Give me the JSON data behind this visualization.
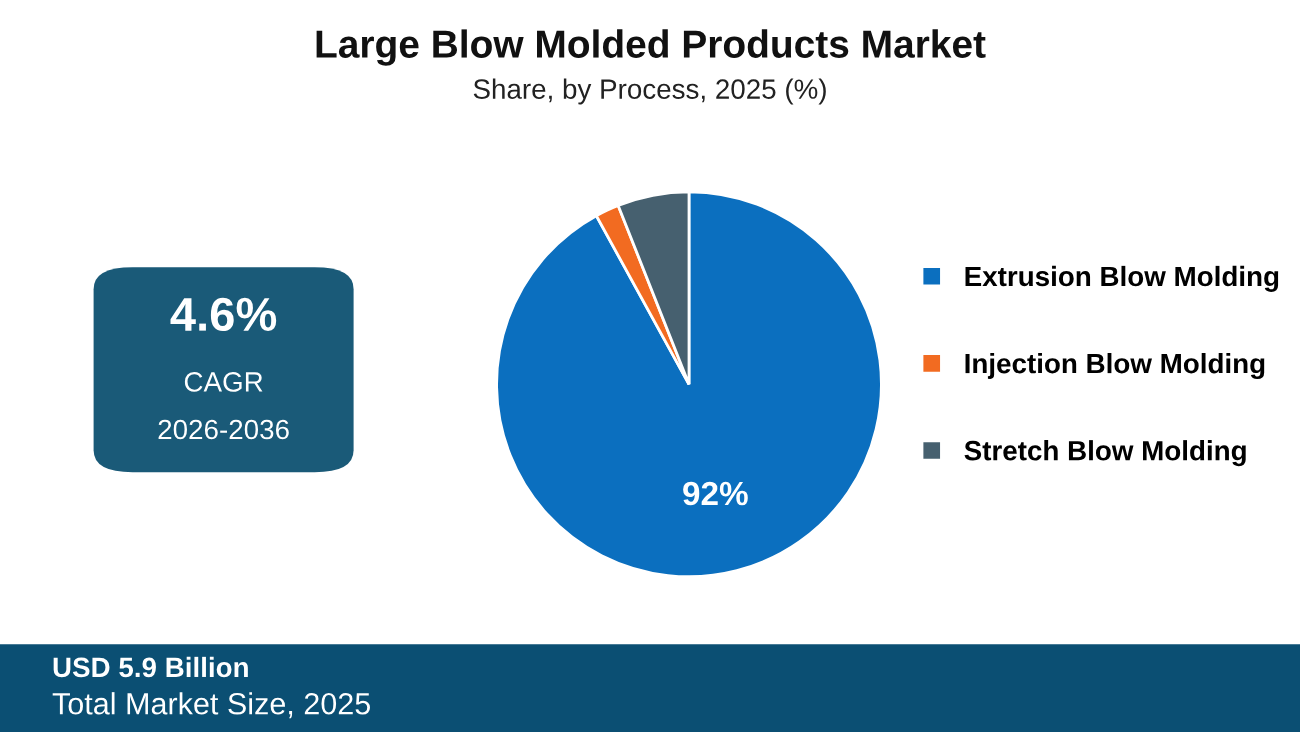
{
  "chart_data": {
    "type": "pie",
    "title": "Large Blow Molded Products Market",
    "subtitle": "Share, by Process, 2025 (%)",
    "categories": [
      "Extrusion Blow Molding",
      "Injection Blow Molding",
      "Stretch Blow Molding"
    ],
    "values": [
      92,
      2,
      6
    ],
    "colors": [
      "#0b6fbf",
      "#f26b21",
      "#46606f"
    ],
    "value_labels": [
      "92%",
      null,
      null
    ],
    "legend": "right",
    "annotations": [
      "4.6%",
      "CAGR",
      "2026-2036",
      "USD 5.9 Billion",
      "Total Market Size, 2025"
    ]
  }
}
